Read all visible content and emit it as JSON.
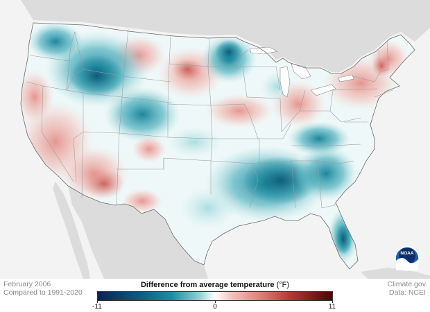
{
  "map": {
    "region": "Contiguous United States",
    "layer": "temperature anomaly",
    "colors": {
      "background": "#f3f3f3",
      "ocean": "#ffffff",
      "land_outside": "#dcdcdc",
      "borders": "#9a9a9a",
      "coastline": "#6a6a6a"
    }
  },
  "logo": {
    "text": "NOAA",
    "colors": {
      "outer": "#1e62a8",
      "inner": "#0a2f6b",
      "wave": "#ffffff"
    }
  },
  "legend": {
    "title": "Difference from average temperature",
    "unit": "(°F)",
    "min_label": "-11",
    "mid_label": "0",
    "max_label": "11",
    "range": [
      -11,
      11
    ],
    "gradient_stops": [
      {
        "value": -11,
        "color": "#0b2350"
      },
      {
        "value": -7,
        "color": "#0e5b80"
      },
      {
        "value": -4,
        "color": "#1f8fa0"
      },
      {
        "value": -1.5,
        "color": "#8fd0d6"
      },
      {
        "value": 0,
        "color": "#ffffff"
      },
      {
        "value": 1.5,
        "color": "#f5c4be"
      },
      {
        "value": 4,
        "color": "#e0867e"
      },
      {
        "value": 7,
        "color": "#b53a32"
      },
      {
        "value": 11,
        "color": "#4a0505"
      }
    ]
  },
  "footer": {
    "date": "February 2006",
    "baseline": "Compared to 1991-2020",
    "source_site": "Climate.gov",
    "source_data": "Data: NCEI"
  }
}
